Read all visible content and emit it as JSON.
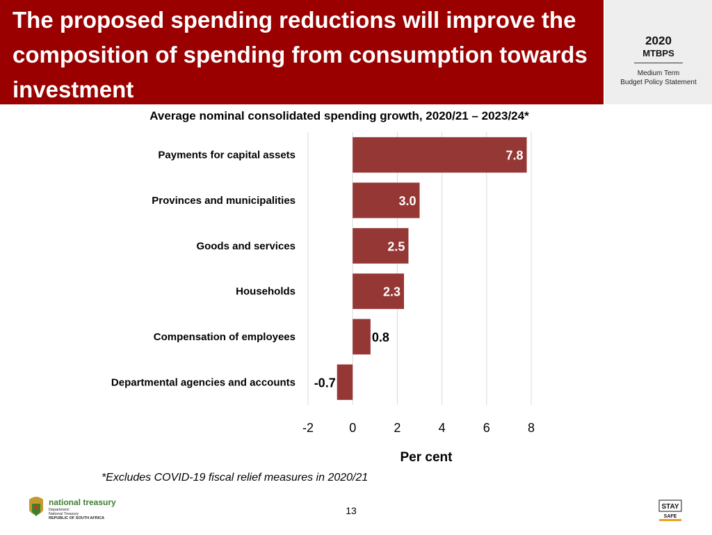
{
  "slide": {
    "title": "The proposed spending reductions will improve the composition of spending from consumption towards investment",
    "chart_heading": "Average nominal consolidated spending growth, 2020/21 – 2023/24*",
    "footnote": "*Excludes COVID-19 fiscal relief measures in 2020/21",
    "page_number": "13"
  },
  "badge": {
    "year": "2020",
    "name": "MTBPS",
    "line1": "Medium Term",
    "line2": "Budget Policy Statement"
  },
  "treasury": {
    "name": "national treasury",
    "dept": "Department:",
    "sub": "National Treasury",
    "country": "REPUBLIC OF SOUTH AFRICA"
  },
  "stay_safe": {
    "top": "STAY",
    "bottom": "SAFE"
  },
  "colors": {
    "title_band": "#9a0000",
    "bar": "#953735",
    "gridline": "#d9d9d9"
  },
  "chart_data": {
    "type": "bar",
    "orientation": "horizontal",
    "categories": [
      "Payments for capital assets",
      "Provinces and municipalities",
      "Goods and services",
      "Households",
      "Compensation of employees",
      "Departmental agencies and accounts"
    ],
    "values": [
      7.8,
      3.0,
      2.5,
      2.3,
      0.8,
      -0.7
    ],
    "data_labels": [
      "7.8",
      "3.0",
      "2.5",
      "2.3",
      "0.8",
      "-0.7"
    ],
    "xlabel": "Per cent",
    "xlim": [
      -2,
      8
    ],
    "xticks": [
      "-2",
      "0",
      "2",
      "4",
      "6",
      "8"
    ],
    "grid": true,
    "legend": "none"
  }
}
